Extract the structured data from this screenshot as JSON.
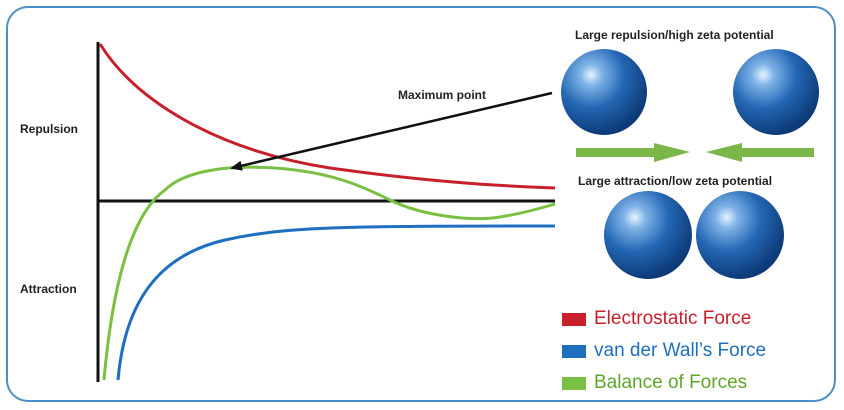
{
  "diagram": {
    "axis_labels": {
      "upper": "Repulsion",
      "lower": "Attraction"
    },
    "annotation": "Maximum point",
    "panel_top_caption": "Large repulsion/high zeta potential",
    "panel_bottom_caption": "Large attraction/low zeta potential",
    "legend": [
      {
        "label": "Electrostatic Force",
        "color": "#c8202b"
      },
      {
        "label": "van der Wall’s Force",
        "color": "#1f6fc1"
      },
      {
        "label": "Balance of Forces",
        "color": "#7ac143"
      }
    ],
    "colors": {
      "frame": "#4d8ec4",
      "sphere": "#1f5fa8",
      "arrow": "#7ab648"
    }
  }
}
